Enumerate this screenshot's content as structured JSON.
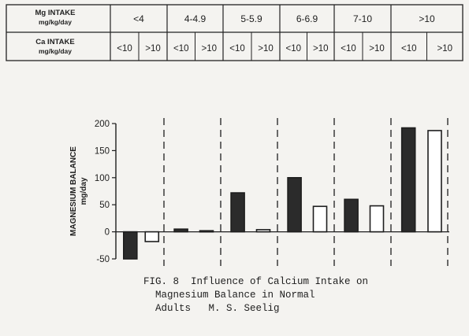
{
  "table": {
    "row1_label": [
      "Mg INTAKE",
      "mg/kg/day"
    ],
    "row2_label": [
      "Ca INTAKE",
      "mg/kg/day"
    ],
    "mg_groups": [
      "<4",
      "4-4.9",
      "5-5.9",
      "6-6.9",
      "7-10",
      ">10"
    ],
    "ca_levels": [
      "<10",
      ">10"
    ]
  },
  "chart_data": {
    "type": "bar",
    "categories": [
      "<4",
      "4-4.9",
      "5-5.9",
      "6-6.9",
      "7-10",
      ">10"
    ],
    "series": [
      {
        "name": "Ca <10",
        "values": [
          -50,
          5,
          72,
          100,
          60,
          192
        ]
      },
      {
        "name": "Ca >10",
        "values": [
          -18,
          2,
          4,
          47,
          48,
          187
        ]
      }
    ],
    "ylabel": "MAGNESIUM BALANCE",
    "yunit": "mg/day",
    "ylim": [
      -50,
      200
    ],
    "yticks": [
      -50,
      0,
      50,
      100,
      150,
      200
    ],
    "ytick_labels": [
      "-50",
      "0",
      "50",
      "100",
      "150",
      "200"
    ],
    "colors": {
      "filled": "#2b2b2b",
      "open": "#ffffff",
      "stroke": "#1e1e1e"
    },
    "dividers": "dashed vertical lines between groups"
  },
  "caption": {
    "line1": "FIG. 8  Influence of Calcium Intake on",
    "line2": "Magnesium Balance in Normal",
    "line3": "Adults   M. S. Seelig"
  }
}
